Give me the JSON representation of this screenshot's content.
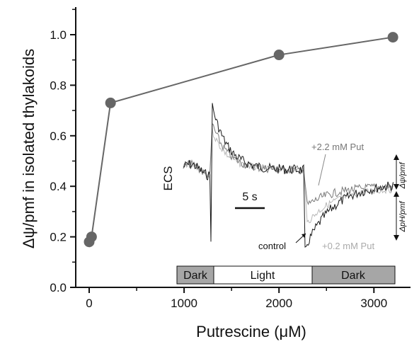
{
  "chart_data": {
    "type": "scatter",
    "title": "",
    "xlabel": "Putrescine (μM)",
    "ylabel": "Δψ/pmf in isolated thylakoids",
    "xlim": [
      -150,
      3450
    ],
    "ylim": [
      0.0,
      1.12
    ],
    "xticks": [
      "0",
      "1000",
      "2000",
      "3000"
    ],
    "yticks": [
      "0.0",
      "0.2",
      "0.4",
      "0.6",
      "0.8",
      "1.0"
    ],
    "series": [
      {
        "x": [
          0,
          25,
          225,
          2000,
          3200
        ],
        "y": [
          0.18,
          0.2,
          0.73,
          0.92,
          0.99
        ],
        "color": "#666666",
        "line": true
      }
    ],
    "inset": {
      "ylabel": "ECS",
      "scale_bar": "5 s",
      "phases": [
        "Dark",
        "Light",
        "Dark"
      ],
      "trace_labels": {
        "high": "+2.2 mM Put",
        "low": "+0.2 mM Put",
        "control": "control"
      },
      "right_labels": {
        "upper": "Δψ/pmf",
        "lower": "ΔpH/pmf"
      }
    }
  }
}
